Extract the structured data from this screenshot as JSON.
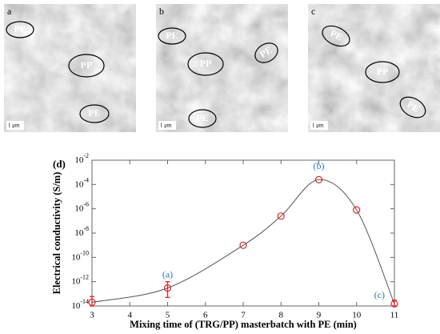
{
  "micrographs": [
    {
      "label": "a",
      "regions": [
        "PE",
        "PP",
        "PE"
      ],
      "scale_bar": "1 μm"
    },
    {
      "label": "b",
      "regions": [
        "PE",
        "PP",
        "PE",
        "PE"
      ],
      "scale_bar": "1 μm"
    },
    {
      "label": "c",
      "regions": [
        "PE",
        "PP",
        "PE"
      ],
      "scale_bar": "1 μm"
    }
  ],
  "chart_data": {
    "type": "line",
    "panel_label": "(d)",
    "x_label": "Mixing time of (TRG/PP) masterbatch with PE (min)",
    "y_label": "Electrical conductivity (S/m)",
    "x": [
      3,
      5,
      7,
      8,
      9,
      10,
      11
    ],
    "values": [
      2e-14,
      3e-13,
      1e-09,
      2.5e-07,
      0.00025,
      8e-07,
      1.5e-14
    ],
    "error_bars": [
      [
        1e-14,
        6e-14
      ],
      [
        5e-14,
        1e-12
      ],
      null,
      null,
      null,
      null,
      [
        1e-14,
        3e-14
      ]
    ],
    "point_labels": [
      null,
      "(a)",
      null,
      null,
      "(b)",
      null,
      "(c)"
    ],
    "line_color": "#555555",
    "marker_color": "#d62728",
    "label_color": "#2a7ab8",
    "log_y": true,
    "xlim": [
      3,
      11
    ],
    "xticks": [
      3,
      4,
      5,
      6,
      7,
      8,
      9,
      10,
      11
    ],
    "ylim": [
      1e-14,
      0.01
    ],
    "yticks": [
      {
        "value": 1e-14,
        "label": "10-14"
      },
      {
        "value": 1e-12,
        "label": "10-12"
      },
      {
        "value": 1e-10,
        "label": "10-10"
      },
      {
        "value": 1e-08,
        "label": "10-8"
      },
      {
        "value": 1e-06,
        "label": "10-6"
      },
      {
        "value": 0.0001,
        "label": "10-4"
      },
      {
        "value": 0.01,
        "label": "10-2"
      }
    ]
  }
}
